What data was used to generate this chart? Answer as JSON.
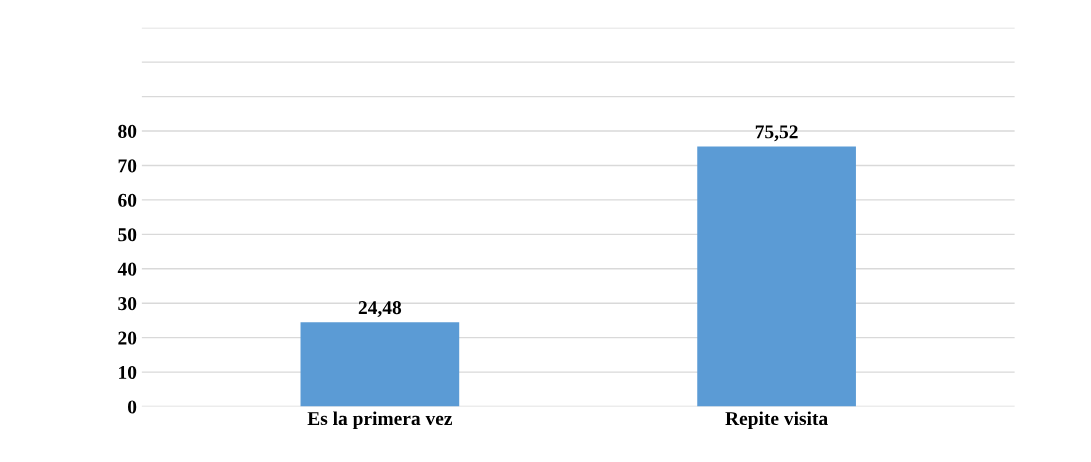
{
  "chart_data": {
    "type": "bar",
    "categories": [
      "Es la primera vez",
      "Repite visita"
    ],
    "values": [
      24.48,
      75.52
    ],
    "color": "#5b9bd5",
    "value_labels": [
      "24,48",
      "75,52"
    ],
    "ylim": [
      0,
      110
    ],
    "yticks": [
      0,
      10,
      20,
      30,
      40,
      50,
      60,
      70,
      80,
      {
        "value": 90,
        "label": null
      },
      {
        "value": 100,
        "label": null
      },
      {
        "value": 110,
        "label": null
      }
    ],
    "grid": "y"
  }
}
